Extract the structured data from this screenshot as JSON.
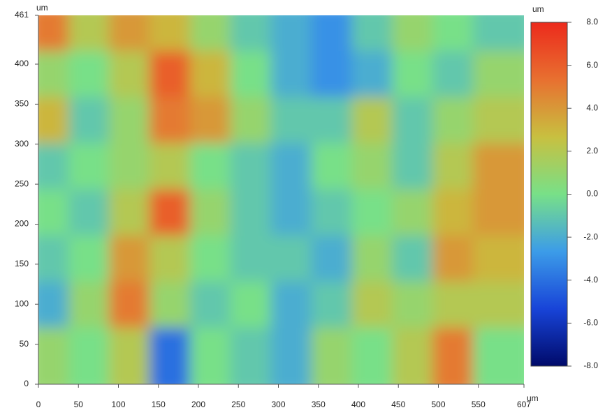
{
  "chart_data": {
    "type": "heatmap",
    "x_unit": "um",
    "y_unit": "um",
    "z_unit": "um",
    "xlim": [
      0,
      607
    ],
    "ylim": [
      0,
      461
    ],
    "zlim": [
      -8,
      8
    ],
    "xticks": [
      0,
      50,
      100,
      150,
      200,
      250,
      300,
      350,
      400,
      450,
      500,
      550,
      607
    ],
    "yticks": [
      0,
      50,
      100,
      150,
      200,
      250,
      300,
      350,
      400,
      461
    ],
    "zticks": [
      {
        "value": 8,
        "label": "8.0"
      },
      {
        "value": 6,
        "label": "6.0"
      },
      {
        "value": 4,
        "label": "4.0"
      },
      {
        "value": 2,
        "label": "2.0"
      },
      {
        "value": 0,
        "label": "0.0"
      },
      {
        "value": -2,
        "label": "-2.0"
      },
      {
        "value": -4,
        "label": "-4.0"
      },
      {
        "value": -6,
        "label": "-6.0"
      },
      {
        "value": -8,
        "label": "-8.0"
      }
    ],
    "colorscale": [
      "#000a6a",
      "#1844d8",
      "#3c9ce8",
      "#78e088",
      "#c8c040",
      "#e87030",
      "#ec2a1c"
    ],
    "z": [
      [
        5,
        2,
        4,
        3,
        1,
        -1,
        -2,
        -3,
        -1,
        1,
        0,
        -1
      ],
      [
        1,
        0,
        2,
        6,
        3,
        0,
        -2,
        -3,
        -2,
        0,
        -1,
        1
      ],
      [
        3,
        -1,
        1,
        5,
        4,
        1,
        -1,
        -1,
        2,
        -1,
        1,
        2
      ],
      [
        -1,
        0,
        1,
        2,
        0,
        -1,
        -2,
        0,
        1,
        -1,
        2,
        4
      ],
      [
        0,
        -1,
        2,
        6,
        1,
        -1,
        -2,
        -1,
        0,
        1,
        3,
        4
      ],
      [
        -1,
        0,
        4,
        2,
        0,
        -1,
        -1,
        -2,
        1,
        -1,
        4,
        3
      ],
      [
        -2,
        1,
        5,
        1,
        -1,
        0,
        -2,
        -1,
        2,
        1,
        2,
        2
      ],
      [
        1,
        0,
        2,
        -4,
        0,
        -1,
        -2,
        1,
        0,
        2,
        5,
        0
      ]
    ]
  }
}
